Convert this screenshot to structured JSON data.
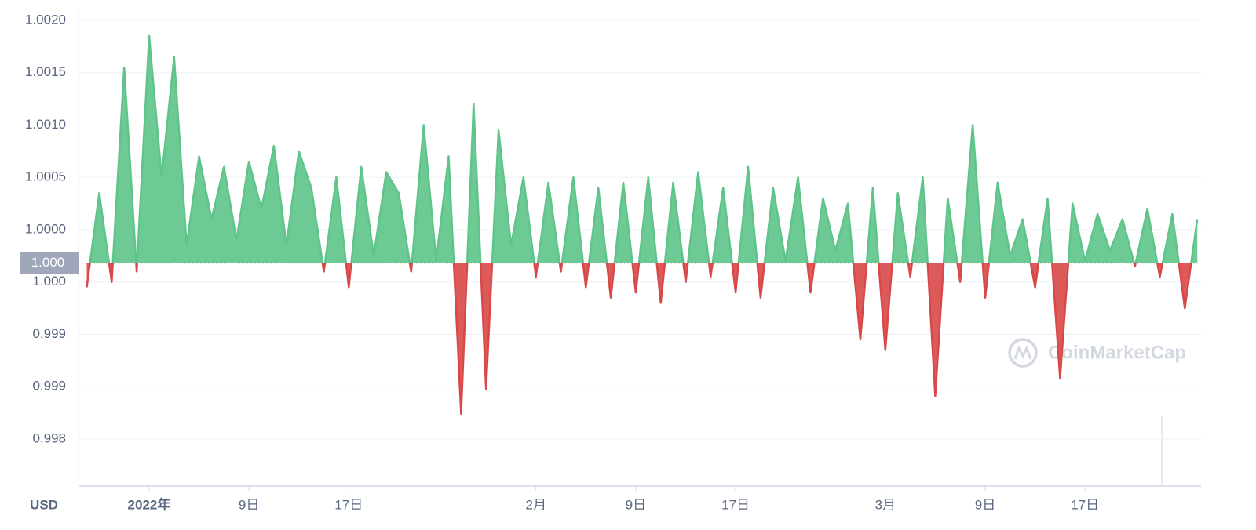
{
  "chart_data": {
    "type": "line",
    "x": [
      -5,
      -4,
      -3,
      -2,
      -1,
      0,
      1,
      2,
      3,
      4,
      5,
      6,
      7,
      8,
      9,
      10,
      11,
      12,
      13,
      14,
      15,
      16,
      17,
      18,
      19,
      20,
      21,
      22,
      23,
      24,
      25,
      26,
      27,
      28,
      29,
      30,
      31,
      32,
      33,
      34,
      35,
      36,
      37,
      38,
      39,
      40,
      41,
      42,
      43,
      44,
      45,
      46,
      47,
      48,
      49,
      50,
      51,
      52,
      53,
      54,
      55,
      56,
      57,
      58,
      59,
      60,
      61,
      62,
      63,
      64,
      65,
      66,
      67,
      68,
      69,
      70,
      71,
      72,
      73,
      74,
      75,
      76,
      77,
      78,
      79,
      80,
      81,
      82,
      83,
      84
    ],
    "values": [
      0.99945,
      1.00035,
      0.9995,
      1.00155,
      0.9996,
      1.00185,
      1.0005,
      1.00165,
      0.99985,
      1.0007,
      1.0001,
      1.0006,
      0.9999,
      1.00065,
      1.0002,
      1.0008,
      0.99985,
      1.00075,
      1.0004,
      0.9996,
      1.0005,
      0.99945,
      1.0006,
      0.99975,
      1.00055,
      1.00035,
      0.9996,
      1.001,
      0.9997,
      1.0007,
      0.99824,
      1.0012,
      0.99848,
      1.00095,
      0.99985,
      1.0005,
      0.99955,
      1.00045,
      0.9996,
      1.0005,
      0.99945,
      1.0004,
      0.99935,
      1.00045,
      0.9994,
      1.0005,
      0.9993,
      1.00045,
      0.9995,
      1.00055,
      0.99955,
      1.0004,
      0.9994,
      1.0006,
      0.99935,
      1.0004,
      0.9997,
      1.0005,
      0.9994,
      1.0003,
      0.9998,
      1.00025,
      0.99895,
      1.0004,
      0.99885,
      1.00035,
      0.99955,
      1.0005,
      0.99841,
      1.0003,
      0.9995,
      1.001,
      0.99935,
      1.00045,
      0.99975,
      1.0001,
      0.99945,
      1.0003,
      0.99858,
      1.00025,
      0.9997,
      1.00015,
      0.9998,
      1.0001,
      0.99965,
      1.0002,
      0.99955,
      1.00015,
      0.99925,
      1.0001
    ],
    "up_color": "#5ec48a",
    "down_color": "#d94848",
    "baseline": {
      "value": 0.99968,
      "label": "1.000"
    },
    "xlim": [
      -5.66,
      84.3
    ],
    "xticks": [
      {
        "value": 0,
        "label": "2022年"
      },
      {
        "value": 8,
        "label": "9日"
      },
      {
        "value": 16,
        "label": "17日"
      },
      {
        "value": 31,
        "label": "2月"
      },
      {
        "value": 39,
        "label": "9日"
      },
      {
        "value": 47,
        "label": "17日"
      },
      {
        "value": 59,
        "label": "3月"
      },
      {
        "value": 67,
        "label": "9日"
      },
      {
        "value": 75,
        "label": "17日"
      }
    ],
    "ylim": [
      0.99755,
      1.00212
    ],
    "yticks": [
      {
        "value": 0.998,
        "label": "0.998"
      },
      {
        "value": 0.9985,
        "label": "0.999"
      },
      {
        "value": 0.999,
        "label": "0.999"
      },
      {
        "value": 0.9995,
        "label": "1.000"
      },
      {
        "value": 1,
        "label": "1.0000"
      },
      {
        "value": 1.0005,
        "label": "1.0005"
      },
      {
        "value": 1.001,
        "label": "1.0010"
      },
      {
        "value": 1.0015,
        "label": "1.0015"
      },
      {
        "value": 1.002,
        "label": "1.0020"
      }
    ],
    "grid": true,
    "currency": "USD",
    "watermark": "CoinMarketCap"
  }
}
